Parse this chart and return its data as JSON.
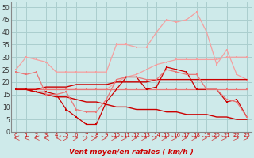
{
  "x": [
    0,
    1,
    2,
    3,
    4,
    5,
    6,
    7,
    8,
    9,
    10,
    11,
    12,
    13,
    14,
    15,
    16,
    17,
    18,
    19,
    20,
    21,
    22,
    23
  ],
  "lines": [
    {
      "name": "light_pink_spiky",
      "color": "#f4a0a0",
      "lw": 0.9,
      "marker": "s",
      "ms": 2.0,
      "values": [
        25,
        30,
        29,
        28,
        24,
        24,
        24,
        24,
        24,
        24,
        35,
        35,
        34,
        34,
        40,
        45,
        44,
        45,
        48,
        40,
        27,
        33,
        23,
        21
      ]
    },
    {
      "name": "light_pink_rising",
      "color": "#f4a0a0",
      "lw": 0.9,
      "marker": "s",
      "ms": 2.0,
      "values": [
        17,
        17,
        17,
        17,
        17,
        17,
        17,
        17,
        17,
        17,
        20,
        22,
        23,
        25,
        27,
        28,
        29,
        29,
        29,
        29,
        29,
        30,
        30,
        30
      ]
    },
    {
      "name": "medium_pink_flat",
      "color": "#e87878",
      "lw": 0.9,
      "marker": "s",
      "ms": 2.0,
      "values": [
        17,
        17,
        17,
        17,
        17,
        17,
        17,
        17,
        17,
        17,
        17,
        17,
        17,
        17,
        17,
        17,
        17,
        17,
        17,
        17,
        17,
        17,
        17,
        17
      ]
    },
    {
      "name": "dark_red_jagged",
      "color": "#cc0000",
      "lw": 0.9,
      "marker": "s",
      "ms": 2.0,
      "values": [
        17,
        17,
        16,
        16,
        15,
        9,
        6,
        3,
        3,
        12,
        17,
        22,
        22,
        17,
        18,
        26,
        25,
        24,
        17,
        17,
        17,
        12,
        13,
        6
      ]
    },
    {
      "name": "dark_red_trend_up",
      "color": "#cc0000",
      "lw": 1.0,
      "marker": null,
      "ms": 0,
      "values": [
        17,
        17,
        17,
        18,
        18,
        18,
        19,
        19,
        19,
        19,
        20,
        20,
        20,
        20,
        21,
        21,
        21,
        21,
        21,
        21,
        21,
        21,
        21,
        21
      ]
    },
    {
      "name": "dark_red_trend_down",
      "color": "#cc0000",
      "lw": 1.0,
      "marker": null,
      "ms": 0,
      "values": [
        17,
        17,
        16,
        15,
        14,
        14,
        13,
        12,
        12,
        11,
        10,
        10,
        9,
        9,
        9,
        8,
        8,
        7,
        7,
        7,
        6,
        6,
        5,
        5
      ]
    },
    {
      "name": "medium_pink_wavy",
      "color": "#e87878",
      "lw": 0.9,
      "marker": "s",
      "ms": 2.0,
      "values": [
        24,
        23,
        24,
        15,
        15,
        16,
        9,
        8,
        8,
        13,
        21,
        22,
        22,
        21,
        21,
        25,
        24,
        23,
        23,
        17,
        17,
        13,
        12,
        6
      ]
    }
  ],
  "arrow_angles": [
    220,
    220,
    215,
    210,
    200,
    30,
    45,
    50,
    0,
    0,
    0,
    0,
    0,
    0,
    0,
    0,
    0,
    0,
    0,
    0,
    350,
    340,
    330,
    325
  ],
  "background_color": "#ceeaea",
  "grid_color": "#aacece",
  "xlabel": "Vent moyen/en rafales ( km/h )",
  "ylabel_ticks": [
    0,
    5,
    10,
    15,
    20,
    25,
    30,
    35,
    40,
    45,
    50
  ],
  "ylim": [
    0,
    52
  ],
  "xlim": [
    -0.5,
    23.5
  ]
}
